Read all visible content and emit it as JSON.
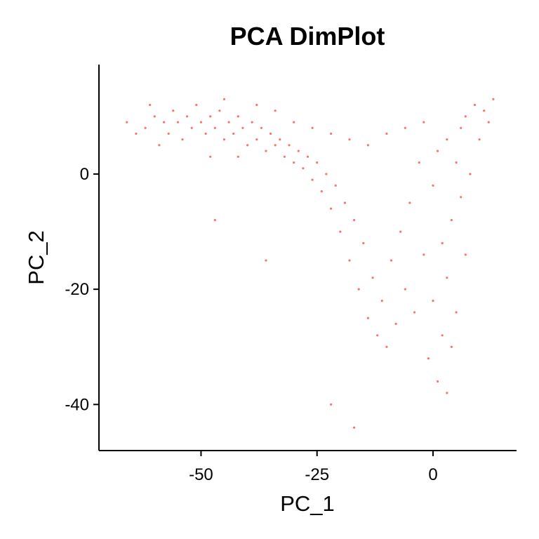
{
  "chart_data": {
    "type": "scatter",
    "title": "PCA DimPlot",
    "xlabel": "PC_1",
    "ylabel": "PC_2",
    "xlim": [
      -72,
      18
    ],
    "ylim": [
      -48,
      19
    ],
    "x_ticks": [
      {
        "value": -50,
        "label": "-50"
      },
      {
        "value": -25,
        "label": "-25"
      },
      {
        "value": 0,
        "label": "0"
      }
    ],
    "y_ticks": [
      {
        "value": 0,
        "label": "0"
      },
      {
        "value": -20,
        "label": "-20"
      },
      {
        "value": -40,
        "label": "-40"
      }
    ],
    "grid": false,
    "legend": "none",
    "point_color": "#F8766D",
    "series": [
      {
        "points": [
          [
            -62,
            8
          ],
          [
            -60,
            10
          ],
          [
            -58,
            9
          ],
          [
            -57,
            7
          ],
          [
            -56,
            11
          ],
          [
            -55,
            9
          ],
          [
            -54,
            6
          ],
          [
            -53,
            10
          ],
          [
            -52,
            8
          ],
          [
            -51,
            12
          ],
          [
            -50,
            9
          ],
          [
            -49,
            7
          ],
          [
            -48,
            10
          ],
          [
            -47,
            8
          ],
          [
            -46,
            11
          ],
          [
            -45,
            6
          ],
          [
            -44,
            9
          ],
          [
            -43,
            7
          ],
          [
            -42,
            10
          ],
          [
            -41,
            8
          ],
          [
            -40,
            5
          ],
          [
            -39,
            9
          ],
          [
            -38,
            6
          ],
          [
            -37,
            8
          ],
          [
            -36,
            4
          ],
          [
            -35,
            7
          ],
          [
            -34,
            5
          ],
          [
            -33,
            6
          ],
          [
            -32,
            3
          ],
          [
            -31,
            5
          ],
          [
            -30,
            2
          ],
          [
            -29,
            4
          ],
          [
            -28,
            1
          ],
          [
            -27,
            3
          ],
          [
            -26,
            -1
          ],
          [
            -25,
            2
          ],
          [
            -24,
            -3
          ],
          [
            -23,
            0
          ],
          [
            -22,
            -6
          ],
          [
            -21,
            -2
          ],
          [
            -20,
            -10
          ],
          [
            -19,
            -5
          ],
          [
            -18,
            -15
          ],
          [
            -17,
            -8
          ],
          [
            -16,
            -20
          ],
          [
            -15,
            -12
          ],
          [
            -14,
            -25
          ],
          [
            -13,
            -18
          ],
          [
            -12,
            -28
          ],
          [
            -11,
            -22
          ],
          [
            -10,
            -30
          ],
          [
            -9,
            -15
          ],
          [
            -8,
            -26
          ],
          [
            -7,
            -10
          ],
          [
            -6,
            -20
          ],
          [
            -5,
            -5
          ],
          [
            -4,
            -24
          ],
          [
            -3,
            2
          ],
          [
            -2,
            -14
          ],
          [
            -1,
            -32
          ],
          [
            0,
            -2
          ],
          [
            0,
            -22
          ],
          [
            1,
            -36
          ],
          [
            1,
            4
          ],
          [
            2,
            -12
          ],
          [
            2,
            -28
          ],
          [
            3,
            -38
          ],
          [
            3,
            6
          ],
          [
            3,
            -18
          ],
          [
            4,
            -8
          ],
          [
            4,
            -30
          ],
          [
            5,
            2
          ],
          [
            5,
            -24
          ],
          [
            6,
            8
          ],
          [
            6,
            -4
          ],
          [
            7,
            -14
          ],
          [
            7,
            10
          ],
          [
            8,
            0
          ],
          [
            9,
            12
          ],
          [
            10,
            6
          ],
          [
            11,
            11
          ],
          [
            12,
            9
          ],
          [
            13,
            13
          ],
          [
            -66,
            9
          ],
          [
            -64,
            7
          ],
          [
            -61,
            12
          ],
          [
            -59,
            5
          ],
          [
            -48,
            3
          ],
          [
            -45,
            13
          ],
          [
            -42,
            3
          ],
          [
            -38,
            12
          ],
          [
            -34,
            11
          ],
          [
            -30,
            9
          ],
          [
            -26,
            8
          ],
          [
            -22,
            7
          ],
          [
            -18,
            6
          ],
          [
            -14,
            5
          ],
          [
            -10,
            7
          ],
          [
            -6,
            8
          ],
          [
            -2,
            9
          ],
          [
            -36,
            -15
          ],
          [
            -47,
            -8
          ],
          [
            -17,
            -44
          ],
          [
            -22,
            -40
          ]
        ]
      }
    ]
  }
}
